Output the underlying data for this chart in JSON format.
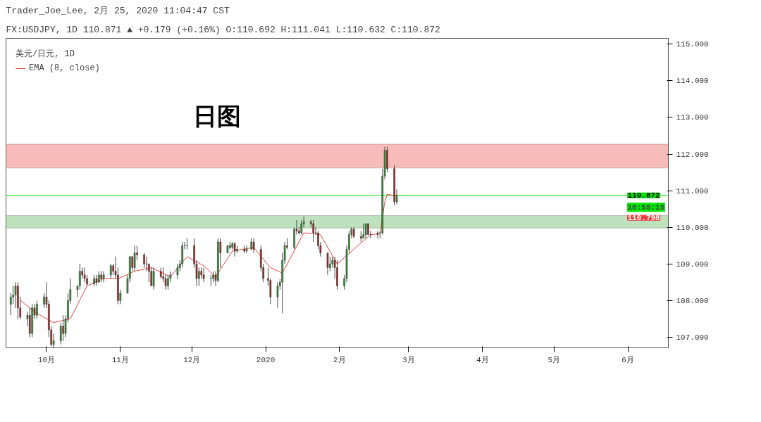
{
  "chart_data": {
    "type": "candlestick",
    "title": "Trader_Joe_Lee, 2月 25, 2020 11:04:47 CST",
    "subtitle": "FX:USDJPY, 1D 110.871 ▲ +0.179 (+0.16%) O:110.692 H:111.041 L:110.632 C:110.872",
    "legend_title": "美元/日元, 1D",
    "legend": "top left",
    "x": [
      "2019-09-16",
      "2019-09-17",
      "2019-09-18",
      "2019-09-19",
      "2019-09-20",
      "2019-09-23",
      "2019-09-24",
      "2019-09-25",
      "2019-09-26",
      "2019-09-27",
      "2019-09-30",
      "2019-10-01",
      "2019-10-02",
      "2019-10-03",
      "2019-10-04",
      "2019-10-07",
      "2019-10-08",
      "2019-10-09",
      "2019-10-10",
      "2019-10-11",
      "2019-10-14",
      "2019-10-15",
      "2019-10-16",
      "2019-10-17",
      "2019-10-18",
      "2019-10-21",
      "2019-10-22",
      "2019-10-23",
      "2019-10-24",
      "2019-10-25",
      "2019-10-28",
      "2019-10-29",
      "2019-10-30",
      "2019-10-31",
      "2019-11-01",
      "2019-11-04",
      "2019-11-05",
      "2019-11-06",
      "2019-11-07",
      "2019-11-08",
      "2019-11-11",
      "2019-11-12",
      "2019-11-13",
      "2019-11-14",
      "2019-11-15",
      "2019-11-18",
      "2019-11-19",
      "2019-11-20",
      "2019-11-21",
      "2019-11-22",
      "2019-11-25",
      "2019-11-26",
      "2019-11-27",
      "2019-11-28",
      "2019-11-29",
      "2019-12-02",
      "2019-12-03",
      "2019-12-04",
      "2019-12-05",
      "2019-12-06",
      "2019-12-09",
      "2019-12-10",
      "2019-12-11",
      "2019-12-12",
      "2019-12-13",
      "2019-12-16",
      "2019-12-17",
      "2019-12-18",
      "2019-12-19",
      "2019-12-20",
      "2019-12-23",
      "2019-12-24",
      "2019-12-26",
      "2019-12-27",
      "2019-12-30",
      "2019-12-31",
      "2020-01-02",
      "2020-01-03",
      "2020-01-06",
      "2020-01-07",
      "2020-01-08",
      "2020-01-09",
      "2020-01-10",
      "2020-01-13",
      "2020-01-14",
      "2020-01-15",
      "2020-01-16",
      "2020-01-17",
      "2020-01-20",
      "2020-01-21",
      "2020-01-22",
      "2020-01-23",
      "2020-01-24",
      "2020-01-27",
      "2020-01-28",
      "2020-01-29",
      "2020-01-30",
      "2020-01-31",
      "2020-02-03",
      "2020-02-04",
      "2020-02-05",
      "2020-02-06",
      "2020-02-07",
      "2020-02-10",
      "2020-02-11",
      "2020-02-12",
      "2020-02-13",
      "2020-02-14",
      "2020-02-17",
      "2020-02-18",
      "2020-02-19",
      "2020-02-20",
      "2020-02-21",
      "2020-02-24",
      "2020-02-25"
    ],
    "ohlc": [
      [
        107.9,
        108.2,
        107.6,
        108.1
      ],
      [
        108.1,
        108.4,
        107.9,
        108.15
      ],
      [
        108.15,
        108.5,
        107.8,
        108.4
      ],
      [
        108.4,
        108.5,
        107.5,
        107.8
      ],
      [
        107.8,
        108.1,
        107.5,
        107.55
      ],
      [
        107.5,
        107.7,
        107.3,
        107.6
      ],
      [
        107.6,
        107.8,
        107.0,
        107.1
      ],
      [
        107.1,
        107.9,
        107.0,
        107.8
      ],
      [
        107.8,
        107.9,
        107.5,
        107.6
      ],
      [
        107.6,
        108.0,
        107.5,
        107.9
      ],
      [
        107.9,
        108.2,
        107.8,
        108.1
      ],
      [
        108.1,
        108.5,
        107.8,
        107.9
      ],
      [
        107.9,
        108.0,
        107.0,
        107.2
      ],
      [
        107.2,
        107.3,
        106.75,
        106.8
      ],
      [
        106.8,
        107.1,
        106.7,
        106.9
      ],
      [
        106.9,
        107.4,
        106.8,
        107.3
      ],
      [
        107.3,
        107.6,
        106.9,
        107.1
      ],
      [
        107.1,
        107.6,
        107.0,
        107.5
      ],
      [
        107.5,
        108.2,
        107.4,
        108.0
      ],
      [
        108.0,
        108.6,
        107.9,
        108.3
      ],
      [
        108.3,
        108.4,
        108.1,
        108.4
      ],
      [
        108.4,
        109.0,
        108.3,
        108.8
      ],
      [
        108.8,
        108.9,
        108.6,
        108.7
      ],
      [
        108.7,
        108.9,
        108.5,
        108.6
      ],
      [
        108.6,
        108.7,
        108.4,
        108.45
      ],
      [
        108.45,
        108.7,
        108.4,
        108.6
      ],
      [
        108.6,
        108.7,
        108.4,
        108.5
      ],
      [
        108.5,
        108.8,
        108.5,
        108.7
      ],
      [
        108.7,
        108.8,
        108.5,
        108.6
      ],
      [
        108.6,
        108.8,
        108.5,
        108.7
      ],
      [
        108.7,
        109.0,
        108.6,
        108.95
      ],
      [
        108.95,
        109.0,
        108.7,
        108.8
      ],
      [
        108.8,
        109.2,
        108.6,
        108.7
      ],
      [
        108.7,
        108.9,
        107.9,
        108.0
      ],
      [
        108.0,
        108.3,
        107.9,
        108.2
      ],
      [
        108.2,
        108.7,
        108.2,
        108.6
      ],
      [
        108.6,
        109.2,
        108.5,
        109.2
      ],
      [
        109.2,
        109.2,
        108.8,
        108.9
      ],
      [
        108.9,
        109.5,
        108.8,
        109.3
      ],
      [
        109.3,
        109.5,
        109.1,
        109.25
      ],
      [
        109.25,
        109.3,
        108.9,
        109.0
      ],
      [
        109.0,
        109.2,
        108.8,
        109.0
      ],
      [
        109.0,
        109.0,
        108.5,
        108.8
      ],
      [
        108.8,
        108.9,
        108.4,
        108.4
      ],
      [
        108.4,
        108.9,
        108.3,
        108.8
      ],
      [
        108.8,
        108.9,
        108.6,
        108.65
      ],
      [
        108.65,
        108.9,
        108.5,
        108.6
      ],
      [
        108.6,
        108.7,
        108.3,
        108.4
      ],
      [
        108.4,
        108.7,
        108.3,
        108.6
      ],
      [
        108.6,
        108.8,
        108.5,
        108.7
      ],
      [
        108.7,
        109.0,
        108.6,
        108.9
      ],
      [
        108.9,
        109.1,
        108.8,
        109.0
      ],
      [
        109.0,
        109.6,
        108.9,
        109.5
      ],
      [
        109.5,
        109.6,
        109.4,
        109.5
      ],
      [
        109.5,
        109.7,
        109.4,
        109.5
      ],
      [
        109.5,
        109.7,
        108.9,
        109.0
      ],
      [
        109.0,
        109.1,
        108.4,
        108.6
      ],
      [
        108.6,
        108.9,
        108.4,
        108.8
      ],
      [
        108.8,
        108.9,
        108.6,
        108.7
      ],
      [
        108.7,
        108.9,
        108.5,
        108.6
      ],
      [
        108.6,
        108.7,
        108.4,
        108.6
      ],
      [
        108.6,
        108.8,
        108.5,
        108.7
      ],
      [
        108.7,
        108.8,
        108.4,
        108.55
      ],
      [
        108.55,
        109.7,
        108.5,
        109.6
      ],
      [
        109.6,
        109.7,
        108.9,
        109.3
      ],
      [
        109.3,
        109.5,
        109.3,
        109.5
      ],
      [
        109.5,
        109.6,
        109.4,
        109.45
      ],
      [
        109.45,
        109.6,
        109.4,
        109.55
      ],
      [
        109.55,
        109.6,
        109.2,
        109.35
      ],
      [
        109.35,
        109.5,
        109.3,
        109.4
      ],
      [
        109.4,
        109.5,
        109.3,
        109.35
      ],
      [
        109.35,
        109.5,
        109.3,
        109.4
      ],
      [
        109.4,
        109.7,
        109.4,
        109.6
      ],
      [
        109.6,
        109.7,
        109.3,
        109.4
      ],
      [
        109.4,
        109.5,
        108.8,
        108.9
      ],
      [
        108.9,
        109.0,
        108.5,
        108.6
      ],
      [
        108.6,
        108.9,
        108.4,
        108.55
      ],
      [
        108.55,
        108.6,
        107.9,
        108.1
      ],
      [
        108.1,
        108.5,
        107.8,
        108.4
      ],
      [
        108.4,
        108.6,
        108.3,
        108.5
      ],
      [
        108.5,
        109.3,
        107.65,
        109.1
      ],
      [
        109.1,
        109.6,
        109.0,
        109.5
      ],
      [
        109.5,
        109.7,
        109.4,
        109.45
      ],
      [
        109.45,
        110.0,
        109.4,
        109.95
      ],
      [
        109.95,
        110.2,
        109.8,
        109.9
      ],
      [
        109.9,
        110.0,
        109.8,
        109.85
      ],
      [
        109.85,
        110.2,
        109.8,
        110.1
      ],
      [
        110.1,
        110.3,
        110.0,
        110.15
      ],
      [
        110.15,
        110.2,
        110.0,
        110.1
      ],
      [
        110.1,
        110.2,
        109.6,
        109.85
      ],
      [
        109.85,
        110.0,
        109.8,
        109.85
      ],
      [
        109.85,
        109.9,
        109.4,
        109.5
      ],
      [
        109.5,
        109.6,
        109.2,
        109.3
      ],
      [
        109.3,
        109.3,
        108.7,
        108.9
      ],
      [
        108.9,
        109.2,
        108.8,
        109.0
      ],
      [
        109.0,
        109.2,
        108.9,
        109.1
      ],
      [
        109.1,
        109.2,
        108.6,
        108.9
      ],
      [
        108.9,
        109.1,
        108.3,
        108.4
      ],
      [
        108.4,
        108.7,
        108.3,
        108.6
      ],
      [
        108.6,
        109.5,
        108.5,
        109.4
      ],
      [
        109.4,
        109.9,
        109.3,
        109.8
      ],
      [
        109.8,
        110.0,
        109.7,
        109.95
      ],
      [
        109.95,
        110.0,
        109.7,
        109.75
      ],
      [
        109.75,
        109.9,
        109.6,
        109.7
      ],
      [
        109.7,
        110.1,
        109.7,
        109.8
      ],
      [
        109.8,
        110.1,
        109.7,
        110.1
      ],
      [
        110.1,
        110.1,
        109.8,
        109.8
      ],
      [
        109.8,
        109.9,
        109.7,
        109.8
      ],
      [
        109.8,
        109.9,
        109.7,
        109.85
      ],
      [
        109.85,
        109.9,
        109.7,
        109.85
      ],
      [
        109.85,
        111.6,
        109.8,
        111.4
      ],
      [
        111.4,
        112.2,
        111.3,
        112.1
      ],
      [
        112.1,
        112.2,
        111.5,
        111.6
      ],
      [
        111.6,
        111.7,
        110.6,
        110.7
      ],
      [
        110.692,
        111.041,
        110.632,
        110.872
      ]
    ],
    "series": [
      {
        "name": "EMA (8, close)",
        "type": "line",
        "color": "#e8453c",
        "x": [
          "2019-09-20",
          "2019-09-27",
          "2019-10-04",
          "2019-10-11",
          "2019-10-18",
          "2019-10-25",
          "2019-10-31",
          "2019-11-07",
          "2019-11-14",
          "2019-11-22",
          "2019-11-29",
          "2019-12-06",
          "2019-12-11",
          "2019-12-18",
          "2019-12-27",
          "2020-01-03",
          "2020-01-08",
          "2020-01-17",
          "2020-01-24",
          "2020-01-31",
          "2020-02-07",
          "2020-02-14",
          "2020-02-18",
          "2020-02-20",
          "2020-02-21",
          "2020-02-25"
        ],
        "values": [
          108.0,
          107.65,
          107.4,
          107.5,
          108.4,
          108.6,
          108.6,
          108.8,
          108.9,
          108.65,
          109.2,
          108.95,
          108.65,
          109.35,
          109.45,
          108.9,
          108.75,
          109.85,
          109.8,
          109.0,
          109.4,
          109.8,
          109.82,
          110.7,
          110.9,
          110.86
        ]
      }
    ],
    "xlim": [
      "2019-09-14",
      "2020-06-18"
    ],
    "xticks": [
      {
        "value": "2019-10-01",
        "label": "10月"
      },
      {
        "value": "2019-11-01",
        "label": "11月"
      },
      {
        "value": "2019-12-01",
        "label": "12月"
      },
      {
        "value": "2020-01-01",
        "label": "2020"
      },
      {
        "value": "2020-02-01",
        "label": "2月"
      },
      {
        "value": "2020-03-01",
        "label": "3月"
      },
      {
        "value": "2020-04-01",
        "label": "4月"
      },
      {
        "value": "2020-05-01",
        "label": "5月"
      },
      {
        "value": "2020-06-01",
        "label": "6月"
      }
    ],
    "ylim": [
      106.71,
      115.16
    ],
    "yticks": [
      {
        "value": 107,
        "label": "107.000"
      },
      {
        "value": 108,
        "label": "108.000"
      },
      {
        "value": 109,
        "label": "109.000"
      },
      {
        "value": 110,
        "label": "110.000"
      },
      {
        "value": 111,
        "label": "111.000"
      },
      {
        "value": 112,
        "label": "112.000"
      },
      {
        "value": 113,
        "label": "113.000"
      },
      {
        "value": 114,
        "label": "114.000"
      },
      {
        "value": 115,
        "label": "115.000"
      }
    ],
    "bands": [
      {
        "axis": "y",
        "from": 111.62,
        "to": 112.27,
        "color": "#f4a6a3"
      },
      {
        "axis": "y",
        "from": 109.98,
        "to": 110.32,
        "color": "#a8d8a8"
      }
    ],
    "ref_lines": [
      {
        "axis": "y",
        "value": 110.872,
        "label": "110.872",
        "color": "#00e600"
      }
    ],
    "annotations": [
      "日图",
      "18:55:15",
      {
        "text": "110.798",
        "y": 110.798
      }
    ]
  }
}
